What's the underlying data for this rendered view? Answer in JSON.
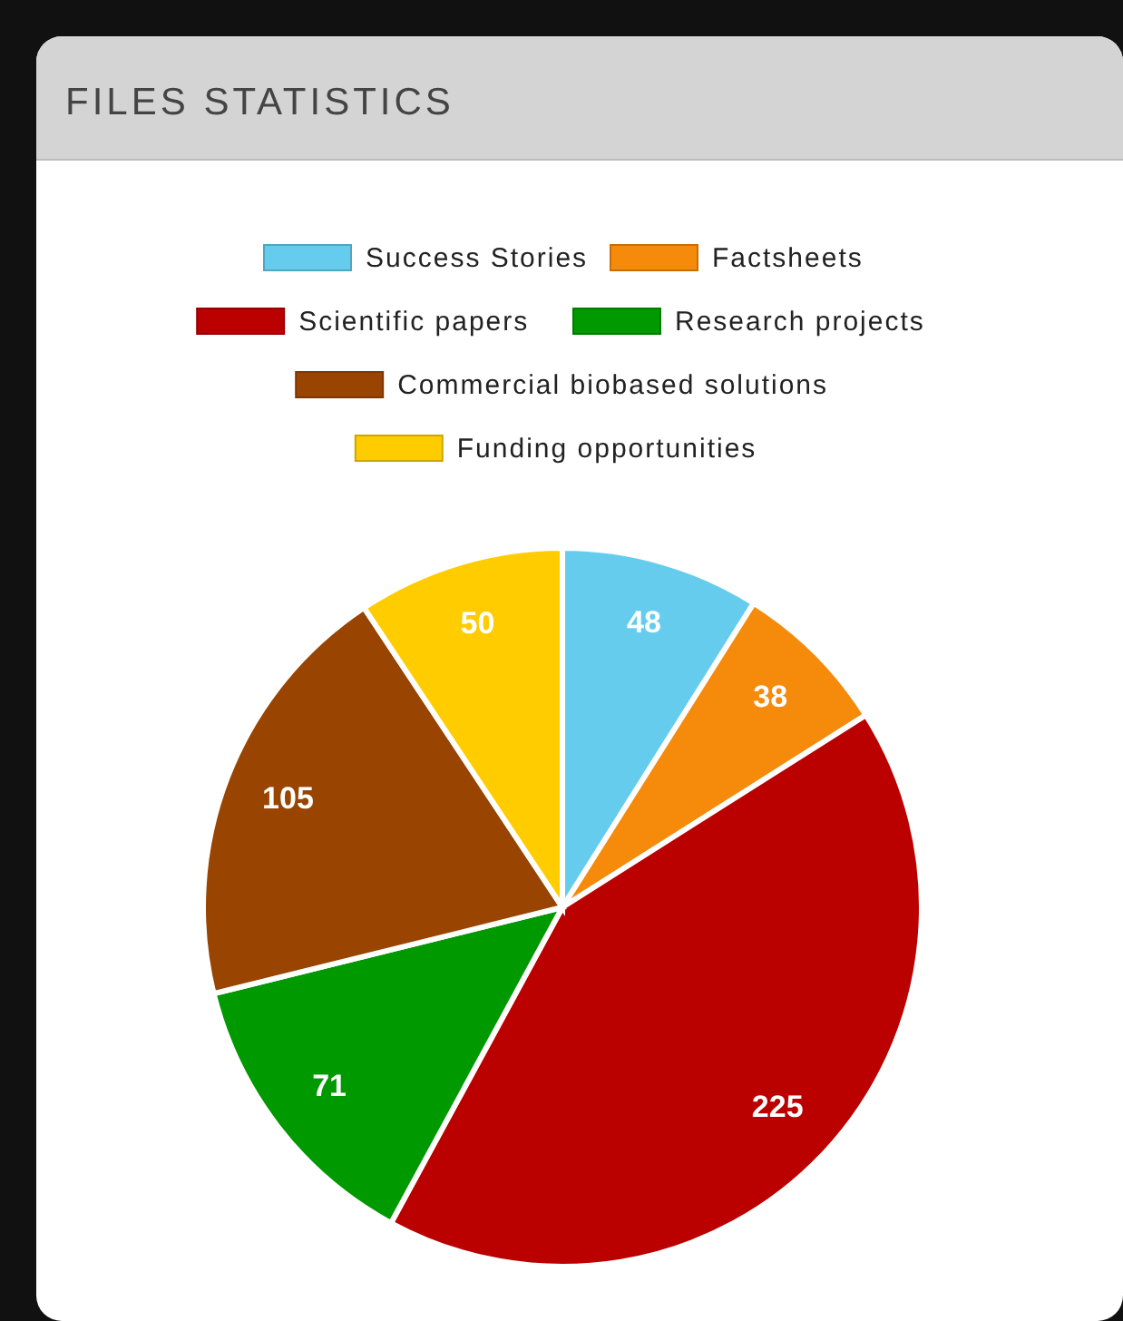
{
  "chart_data": {
    "type": "pie",
    "title": "FILES STATISTICS",
    "categories": [
      "Success Stories",
      "Factsheets",
      "Scientific papers",
      "Research projects",
      "Commercial biobased solutions",
      "Funding opportunities"
    ],
    "values": [
      48,
      38,
      225,
      71,
      105,
      50
    ],
    "colors": [
      "#66ccee",
      "#f58a0b",
      "#bb0000",
      "#009900",
      "#994400",
      "#ffcc00"
    ],
    "data_labels": true,
    "legend": "top"
  }
}
